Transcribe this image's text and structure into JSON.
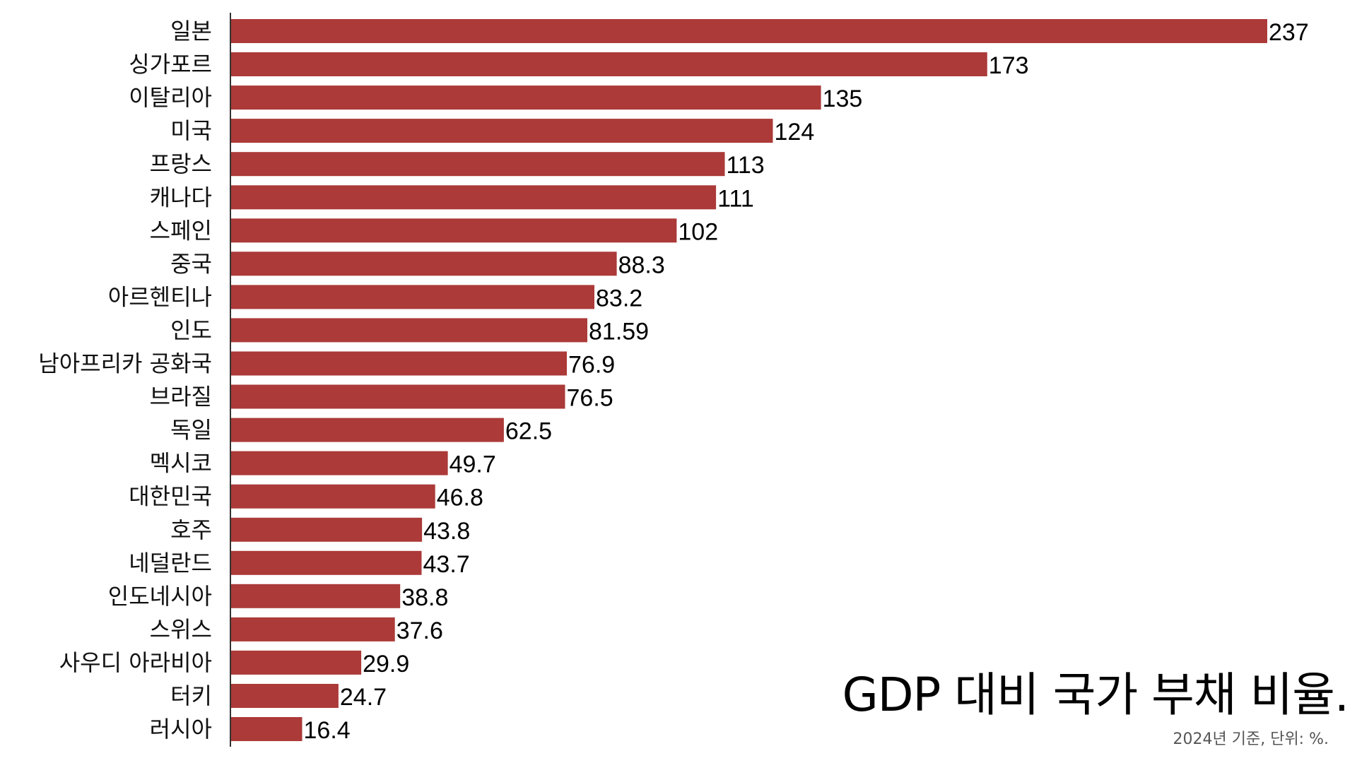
{
  "chart_data": {
    "type": "bar",
    "orientation": "horizontal",
    "title": "GDP 대비 국가 부채 비율.",
    "subtitle": "2024년 기준, 단위: %.",
    "categories": [
      "일본",
      "싱가포르",
      "이탈리아",
      "미국",
      "프랑스",
      "캐나다",
      "스페인",
      "중국",
      "아르헨티나",
      "인도",
      "남아프리카 공화국",
      "브라질",
      "독일",
      "멕시코",
      "대한민국",
      "호주",
      "네덜란드",
      "인도네시아",
      "스위스",
      "사우디 아라비아",
      "터키",
      "러시아"
    ],
    "values": [
      237,
      173,
      135,
      124,
      113,
      111,
      102,
      88.3,
      83.2,
      81.59,
      76.9,
      76.5,
      62.5,
      49.7,
      46.8,
      43.8,
      43.7,
      38.8,
      37.6,
      29.9,
      24.7,
      16.4
    ],
    "value_labels": [
      "237",
      "173",
      "135",
      "124",
      "113",
      "111",
      "102",
      "88.3",
      "83.2",
      "81.59",
      "76.9",
      "76.5",
      "62.5",
      "49.7",
      "46.8",
      "43.8",
      "43.7",
      "38.8",
      "37.6",
      "29.9",
      "24.7",
      "16.4"
    ],
    "xlim": [
      0,
      237
    ],
    "grid": false,
    "legend": false,
    "bar_color": "#ab3a38",
    "axis_color": "#333333"
  }
}
